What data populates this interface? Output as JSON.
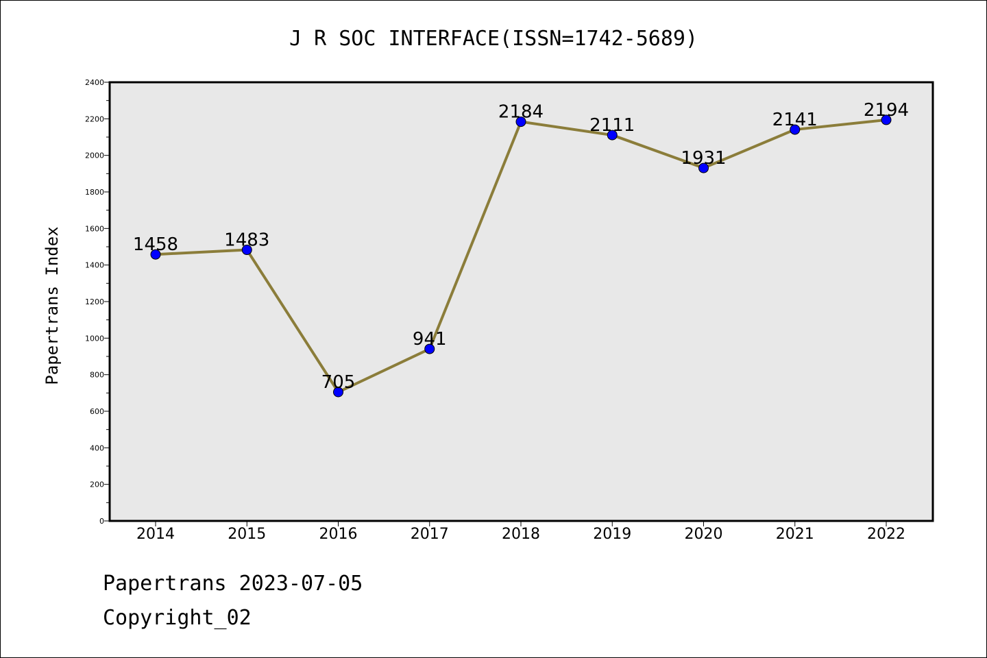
{
  "chart_data": {
    "type": "line",
    "title": "J R SOC INTERFACE(ISSN=1742-5689)",
    "xlabel": "",
    "ylabel": "Papertrans Index",
    "categories": [
      "2014",
      "2015",
      "2016",
      "2017",
      "2018",
      "2019",
      "2020",
      "2021",
      "2022"
    ],
    "series": [
      {
        "values": [
          1458,
          1483,
          705,
          941,
          2184,
          2111,
          1931,
          2141,
          2194
        ]
      }
    ],
    "data_labels": [
      "1458",
      "1483",
      "705",
      "941",
      "2184",
      "2111",
      "1931",
      "2141",
      "2194"
    ],
    "ylim": [
      0,
      2400
    ],
    "y_ticks": [
      0,
      200,
      400,
      600,
      800,
      1000,
      1200,
      1400,
      1600,
      1800,
      2000,
      2200,
      2400
    ],
    "y_tick_labels": [
      "0",
      "200",
      "400",
      "600",
      "800",
      "1000",
      "1200",
      "1400",
      "1600",
      "1800",
      "2000",
      "2200",
      "2400"
    ],
    "grid": false,
    "legend": "none",
    "colors": {
      "line": "#8b7d3a",
      "marker": "#0000ff",
      "plot_background": "#e8e8e8"
    }
  },
  "footer": {
    "line1": "Papertrans 2023-07-05",
    "line2": "Copyright_02"
  }
}
